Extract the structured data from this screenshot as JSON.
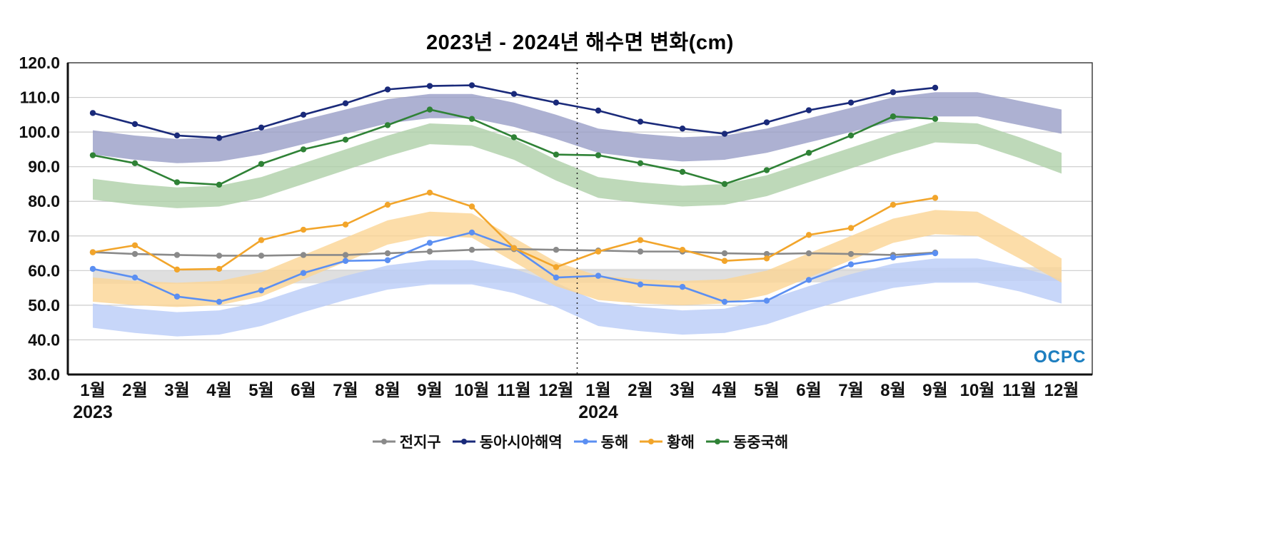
{
  "logo": {
    "text": "OCPC"
  },
  "chart_data": {
    "type": "line",
    "title": "2023년 - 2024년 해수면 변화(cm)",
    "xlabel": "",
    "ylabel": "",
    "ylim": [
      30,
      120
    ],
    "grid": true,
    "legend_position": "bottom",
    "ytick_labels": [
      "120.0",
      "110.0",
      "100.0",
      "90.0",
      "80.0",
      "70.0",
      "60.0",
      "50.0",
      "40.0",
      "30.0"
    ],
    "categories": [
      "1월",
      "2월",
      "3월",
      "4월",
      "5월",
      "6월",
      "7월",
      "8월",
      "9월",
      "10월",
      "11월",
      "12월",
      "1월",
      "2월",
      "3월",
      "4월",
      "5월",
      "6월",
      "7월",
      "8월",
      "9월",
      "10월",
      "11월",
      "12월"
    ],
    "year_labels": [
      {
        "label": "2023",
        "index": 0
      },
      {
        "label": "2024",
        "index": 12
      }
    ],
    "separator_between": [
      11,
      12
    ],
    "note": "Lines with markers run Jan 2023 - Sep 2024; shaded climatology bands span all 24 months.",
    "series": [
      {
        "key": "global",
        "name": "전지구",
        "color": "#8a8a8a",
        "band_color": "#d7d7d7",
        "values": [
          65.3,
          64.8,
          64.5,
          64.3,
          64.3,
          64.5,
          64.5,
          65.0,
          65.5,
          66.0,
          66.2,
          66.0,
          65.8,
          65.5,
          65.5,
          65.0,
          64.8,
          65.0,
          64.8,
          64.5,
          65.2
        ],
        "band_upper": [
          60.2,
          60.2,
          60.2,
          60.2,
          60.2,
          60.3,
          60.3,
          60.3,
          60.4,
          60.5,
          60.5,
          60.5,
          60.5,
          60.5,
          60.5,
          60.5,
          60.5,
          60.6,
          60.6,
          60.7,
          60.8,
          60.9,
          61.0,
          61.0
        ],
        "band_lower": [
          56.2,
          56.2,
          56.2,
          56.2,
          56.2,
          56.3,
          56.3,
          56.3,
          56.4,
          56.5,
          56.5,
          56.5,
          56.5,
          56.5,
          56.5,
          56.5,
          56.5,
          56.6,
          56.6,
          56.7,
          56.8,
          56.9,
          57.0,
          57.0
        ]
      },
      {
        "key": "east-asia",
        "name": "동아시아해역",
        "color": "#1a2a7a",
        "band_color": "#989ec7",
        "values": [
          105.5,
          102.3,
          99.0,
          98.3,
          101.3,
          105.0,
          108.3,
          112.3,
          113.3,
          113.5,
          111.0,
          108.5,
          106.2,
          103.0,
          101.0,
          99.5,
          102.8,
          106.3,
          108.5,
          111.5,
          112.8
        ],
        "band_upper": [
          100.5,
          99.0,
          98.0,
          98.5,
          100.5,
          103.5,
          106.5,
          109.5,
          111.0,
          111.0,
          108.5,
          105.0,
          101.0,
          99.5,
          98.5,
          99.0,
          101.0,
          104.0,
          107.0,
          110.0,
          111.5,
          111.5,
          109.0,
          106.5
        ],
        "band_lower": [
          93.5,
          92.0,
          91.0,
          91.5,
          93.5,
          96.5,
          99.5,
          102.5,
          104.0,
          104.0,
          101.5,
          98.0,
          94.0,
          92.5,
          91.5,
          92.0,
          94.0,
          97.0,
          100.0,
          103.0,
          104.5,
          104.5,
          102.0,
          99.5
        ]
      },
      {
        "key": "east-sea",
        "name": "동해",
        "color": "#5b8ff2",
        "band_color": "#b9ccf8",
        "values": [
          60.5,
          58.0,
          52.5,
          51.0,
          54.3,
          59.3,
          62.8,
          63.0,
          68.0,
          71.0,
          66.5,
          58.0,
          58.5,
          56.0,
          55.3,
          51.0,
          51.3,
          57.3,
          61.8,
          63.8,
          65.0
        ],
        "band_upper": [
          50.5,
          49.0,
          48.0,
          48.5,
          51.0,
          55.0,
          58.5,
          61.5,
          63.0,
          63.0,
          60.5,
          56.5,
          51.0,
          49.5,
          48.5,
          49.0,
          51.5,
          55.5,
          59.0,
          62.0,
          63.5,
          63.5,
          61.0,
          57.5
        ],
        "band_lower": [
          43.5,
          42.0,
          41.0,
          41.5,
          44.0,
          48.0,
          51.5,
          54.5,
          56.0,
          56.0,
          53.5,
          49.5,
          44.0,
          42.5,
          41.5,
          42.0,
          44.5,
          48.5,
          52.0,
          55.0,
          56.5,
          56.5,
          54.0,
          50.5
        ]
      },
      {
        "key": "yellow-sea",
        "name": "황해",
        "color": "#f2a52b",
        "band_color": "#fbd493",
        "values": [
          65.3,
          67.3,
          60.3,
          60.5,
          68.8,
          71.8,
          73.3,
          79.0,
          82.5,
          78.5,
          66.5,
          61.0,
          65.5,
          68.8,
          66.0,
          62.8,
          63.5,
          70.3,
          72.3,
          79.0,
          81.0
        ],
        "band_upper": [
          58.0,
          57.0,
          56.5,
          57.0,
          59.5,
          64.5,
          69.5,
          74.5,
          77.0,
          76.5,
          69.5,
          62.5,
          58.5,
          57.5,
          57.0,
          57.5,
          60.0,
          65.0,
          70.0,
          75.0,
          77.5,
          77.0,
          70.5,
          63.5
        ],
        "band_lower": [
          51.0,
          50.0,
          49.5,
          50.0,
          52.5,
          57.5,
          62.5,
          67.5,
          70.0,
          69.5,
          62.5,
          55.5,
          51.5,
          50.5,
          50.0,
          50.5,
          53.0,
          58.0,
          63.0,
          68.0,
          70.5,
          70.0,
          63.5,
          56.5
        ]
      },
      {
        "key": "east-china-sea",
        "name": "동중국해",
        "color": "#2f8236",
        "band_color": "#aed0a8",
        "values": [
          93.3,
          91.0,
          85.5,
          84.8,
          90.8,
          95.0,
          97.8,
          102.0,
          106.5,
          103.8,
          98.5,
          93.5,
          93.3,
          91.0,
          88.5,
          85.0,
          89.0,
          94.0,
          99.0,
          104.5,
          103.8
        ],
        "band_upper": [
          86.5,
          85.0,
          84.0,
          84.5,
          87.0,
          91.0,
          95.0,
          99.0,
          102.5,
          102.0,
          98.0,
          92.0,
          87.0,
          85.5,
          84.5,
          85.0,
          87.5,
          91.5,
          95.5,
          99.5,
          103.0,
          102.5,
          98.5,
          94.0
        ],
        "band_lower": [
          80.5,
          79.0,
          78.0,
          78.5,
          81.0,
          85.0,
          89.0,
          93.0,
          96.5,
          96.0,
          92.0,
          86.0,
          81.0,
          79.5,
          78.5,
          79.0,
          81.5,
          85.5,
          89.5,
          93.5,
          97.0,
          96.5,
          92.5,
          88.0
        ]
      }
    ]
  }
}
